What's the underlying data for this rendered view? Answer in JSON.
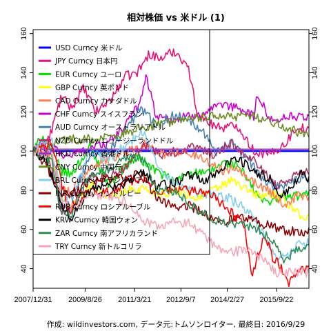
{
  "chart_data": {
    "type": "line",
    "title": "相対株価 vs 米ドル (1)",
    "footer": "作成: wildinvestors.com, データ元:トムソンロイター, 最終日: 2016/9/29",
    "xlabel": "",
    "ylabel": "",
    "ylim": [
      30,
      162
    ],
    "yticks": [
      40,
      60,
      80,
      100,
      120,
      140,
      160
    ],
    "xlim": [
      2008.0,
      2016.75
    ],
    "xticks": [
      {
        "label": "2007/12/31",
        "t": 2008.0
      },
      {
        "label": "2009/8/26",
        "t": 2009.65
      },
      {
        "label": "2011/3/21",
        "t": 2011.22
      },
      {
        "label": "2012/9/7",
        "t": 2012.69
      },
      {
        "label": "2014/2/27",
        "t": 2014.16
      },
      {
        "label": "2015/9/22",
        "t": 2015.72
      }
    ],
    "legend_position": "top-left",
    "grid": false,
    "series": [
      {
        "name": "USD Curncy 米ドル",
        "color": "#0000ff",
        "thick": true,
        "t": [
          2008.0,
          2016.75
        ],
        "values": [
          100,
          100
        ]
      },
      {
        "name": "JPY Curncy 日本円",
        "color": "#e8117a",
        "t": [
          2008.0,
          2008.5,
          2008.9,
          2009.2,
          2009.6,
          2010.0,
          2010.5,
          2010.9,
          2011.3,
          2011.7,
          2012.0,
          2012.5,
          2012.9,
          2013.2,
          2013.5,
          2014.0,
          2014.5,
          2015.0,
          2015.5,
          2016.0,
          2016.4,
          2016.75
        ],
        "values": [
          100,
          106,
          128,
          122,
          132,
          120,
          127,
          138,
          140,
          150,
          147,
          151,
          144,
          120,
          115,
          112,
          113,
          100,
          98,
          104,
          113,
          110
        ]
      },
      {
        "name": "EUR Curncy ユーロ",
        "color": "#00dd00",
        "t": [
          2008.0,
          2008.3,
          2008.9,
          2009.2,
          2009.8,
          2010.4,
          2010.9,
          2011.3,
          2011.9,
          2012.5,
          2013.0,
          2013.5,
          2014.0,
          2014.5,
          2015.0,
          2015.3,
          2015.8,
          2016.3,
          2016.75
        ],
        "values": [
          100,
          108,
          90,
          88,
          102,
          83,
          92,
          97,
          90,
          84,
          90,
          88,
          94,
          93,
          80,
          74,
          76,
          77,
          78
        ]
      },
      {
        "name": "GBP Curncy 英ポンド",
        "color": "#ffff00",
        "t": [
          2008.0,
          2008.5,
          2008.9,
          2009.2,
          2009.8,
          2010.5,
          2011.0,
          2011.5,
          2012.0,
          2012.6,
          2013.2,
          2013.7,
          2014.3,
          2014.8,
          2015.2,
          2015.7,
          2016.2,
          2016.5,
          2016.75
        ],
        "values": [
          100,
          100,
          76,
          72,
          83,
          76,
          80,
          81,
          78,
          80,
          76,
          80,
          85,
          80,
          77,
          78,
          72,
          67,
          66
        ]
      },
      {
        "name": "CAD Curncy カナダドル",
        "color": "#ff7f50",
        "t": [
          2008.0,
          2008.5,
          2008.9,
          2009.2,
          2009.8,
          2010.4,
          2011.0,
          2011.5,
          2012.0,
          2012.6,
          2013.3,
          2014.0,
          2014.5,
          2015.0,
          2015.5,
          2016.0,
          2016.4,
          2016.75
        ],
        "values": [
          100,
          100,
          80,
          79,
          92,
          96,
          100,
          104,
          98,
          100,
          97,
          90,
          92,
          84,
          80,
          72,
          78,
          76
        ]
      },
      {
        "name": "CHF Curncy スイスフラン",
        "color": "#cc00cc",
        "t": [
          2008.0,
          2008.5,
          2008.9,
          2009.2,
          2009.8,
          2010.4,
          2010.9,
          2011.3,
          2011.6,
          2011.9,
          2012.5,
          2013.0,
          2013.5,
          2014.0,
          2014.5,
          2015.0,
          2015.1,
          2015.6,
          2016.0,
          2016.4,
          2016.75
        ],
        "values": [
          100,
          104,
          98,
          98,
          102,
          104,
          113,
          122,
          138,
          118,
          116,
          118,
          120,
          123,
          122,
          118,
          128,
          115,
          118,
          117,
          118
        ]
      },
      {
        "name": "AUD Curncy オーストラリアドル",
        "color": "#4682b4",
        "t": [
          2008.0,
          2008.5,
          2008.9,
          2009.2,
          2009.8,
          2010.4,
          2011.0,
          2011.4,
          2011.9,
          2012.4,
          2012.9,
          2013.4,
          2013.8,
          2014.3,
          2014.8,
          2015.2,
          2015.7,
          2016.1,
          2016.5,
          2016.75
        ],
        "values": [
          100,
          106,
          72,
          72,
          98,
          100,
          112,
          122,
          114,
          118,
          117,
          110,
          100,
          104,
          96,
          87,
          82,
          83,
          86,
          86
        ]
      },
      {
        "name": "NZD Curncy ニュージーランドドル",
        "color": "#b03060",
        "t": [
          2008.0,
          2008.5,
          2008.9,
          2009.2,
          2009.8,
          2010.4,
          2011.0,
          2011.5,
          2012.0,
          2012.6,
          2013.2,
          2013.7,
          2014.3,
          2014.8,
          2015.2,
          2015.7,
          2016.1,
          2016.5,
          2016.75
        ],
        "values": [
          100,
          98,
          70,
          70,
          88,
          86,
          92,
          104,
          98,
          100,
          102,
          98,
          104,
          98,
          92,
          82,
          86,
          90,
          89
        ]
      },
      {
        "name": "HKD Curncy 香港ドル",
        "color": "#9932cc",
        "t": [
          2008.0,
          2016.75
        ],
        "values": [
          101,
          101
        ]
      },
      {
        "name": "CNY Curncy 中国元",
        "color": "#6b8e23",
        "t": [
          2008.0,
          2008.5,
          2009.0,
          2010.0,
          2010.5,
          2011.0,
          2011.5,
          2012.0,
          2013.0,
          2014.0,
          2014.3,
          2015.0,
          2015.6,
          2016.0,
          2016.4,
          2016.75
        ],
        "values": [
          100,
          104,
          106,
          106,
          107,
          110,
          112,
          114,
          116,
          119,
          117,
          118,
          115,
          112,
          110,
          109
        ]
      },
      {
        "name": "BRL Curncy ブラジルレアル",
        "color": "#87ceeb",
        "t": [
          2008.0,
          2008.6,
          2008.9,
          2009.2,
          2009.8,
          2010.4,
          2011.0,
          2011.5,
          2011.9,
          2012.4,
          2013.0,
          2013.6,
          2014.2,
          2014.8,
          2015.2,
          2015.7,
          2016.0,
          2016.4,
          2016.75
        ],
        "values": [
          100,
          108,
          76,
          76,
          98,
          96,
          104,
          110,
          94,
          84,
          80,
          78,
          76,
          70,
          60,
          46,
          46,
          52,
          54
        ]
      },
      {
        "name": "INR Curncy インドルピー",
        "color": "#8b0000",
        "t": [
          2008.0,
          2008.5,
          2008.9,
          2009.3,
          2009.8,
          2010.5,
          2011.0,
          2011.5,
          2011.9,
          2012.4,
          2013.0,
          2013.6,
          2013.9,
          2014.5,
          2015.0,
          2015.5,
          2016.0,
          2016.4,
          2016.75
        ],
        "values": [
          100,
          90,
          78,
          79,
          84,
          86,
          87,
          88,
          76,
          72,
          72,
          66,
          63,
          66,
          64,
          62,
          59,
          59,
          59
        ]
      },
      {
        "name": "RUB Curncy ロシアルーブル",
        "color": "#ff0000",
        "t": [
          2008.0,
          2008.6,
          2009.1,
          2009.8,
          2010.5,
          2011.0,
          2011.5,
          2012.0,
          2012.6,
          2013.3,
          2013.8,
          2014.2,
          2014.7,
          2014.95,
          2015.1,
          2015.35,
          2015.6,
          2015.9,
          2016.1,
          2016.4,
          2016.75
        ],
        "values": [
          100,
          104,
          70,
          80,
          79,
          84,
          86,
          80,
          81,
          79,
          76,
          70,
          62,
          36,
          46,
          58,
          46,
          40,
          32,
          39,
          40
        ]
      },
      {
        "name": "KRW Curncy 韓国ウォン",
        "color": "#000000",
        "t": [
          2008.0,
          2008.4,
          2008.9,
          2009.2,
          2009.8,
          2010.5,
          2011.0,
          2011.5,
          2011.9,
          2012.5,
          2013.0,
          2013.5,
          2014.0,
          2014.5,
          2015.0,
          2015.5,
          2015.8,
          2016.1,
          2016.5,
          2016.75
        ],
        "values": [
          100,
          96,
          72,
          66,
          80,
          82,
          84,
          90,
          82,
          84,
          88,
          85,
          92,
          96,
          90,
          86,
          78,
          80,
          88,
          86
        ]
      },
      {
        "name": "ZAR Curncy 南アフリカランド",
        "color": "#2e8b57",
        "t": [
          2008.0,
          2008.6,
          2008.9,
          2009.2,
          2009.8,
          2010.4,
          2011.0,
          2011.5,
          2011.9,
          2012.5,
          2013.0,
          2013.6,
          2014.2,
          2014.8,
          2015.2,
          2015.7,
          2016.0,
          2016.4,
          2016.75
        ],
        "values": [
          100,
          94,
          68,
          68,
          88,
          90,
          98,
          96,
          80,
          80,
          72,
          66,
          63,
          62,
          60,
          52,
          44,
          50,
          52
        ]
      },
      {
        "name": "TRY Curncy 新トルコリラ",
        "color": "#f4a7b9",
        "t": [
          2008.0,
          2008.6,
          2008.9,
          2009.3,
          2009.8,
          2010.5,
          2011.0,
          2011.5,
          2011.9,
          2012.5,
          2013.0,
          2013.6,
          2014.2,
          2014.8,
          2015.3,
          2015.7,
          2016.0,
          2016.4,
          2016.75
        ],
        "values": [
          100,
          98,
          76,
          70,
          78,
          76,
          74,
          64,
          62,
          64,
          63,
          54,
          48,
          50,
          44,
          38,
          38,
          38,
          38
        ]
      }
    ]
  }
}
